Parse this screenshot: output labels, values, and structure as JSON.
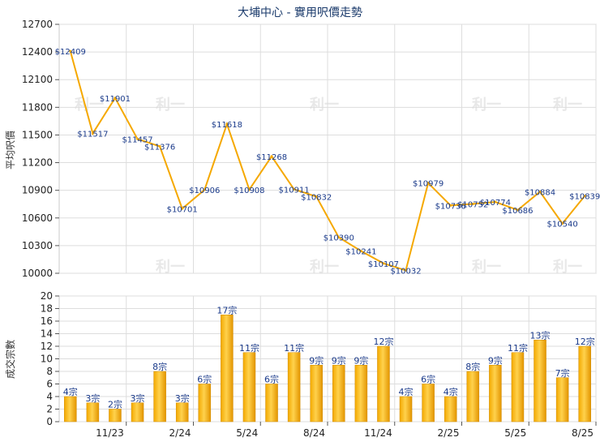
{
  "chart_data": [
    {
      "type": "line",
      "title": "大埔中心 - 實用呎價走勢",
      "ylabel": "平均呎價",
      "ylim": [
        10000,
        12700
      ],
      "yticks": [
        10000,
        10300,
        10600,
        10900,
        11200,
        11500,
        11800,
        12100,
        12400,
        12700
      ],
      "grid": true,
      "color": "#f5a800",
      "label_prefix": "$",
      "values": [
        12409,
        11517,
        11901,
        11457,
        11376,
        10701,
        10906,
        11618,
        10908,
        11268,
        10911,
        10832,
        10390,
        10241,
        10107,
        10032,
        10979,
        10736,
        10752,
        10774,
        10686,
        10884,
        10540,
        10839
      ]
    },
    {
      "type": "bar",
      "ylabel": "成交宗數",
      "ylim": [
        0,
        20
      ],
      "yticks": [
        0,
        2,
        4,
        6,
        8,
        10,
        12,
        14,
        16,
        18,
        20
      ],
      "grid": true,
      "color": "#f5a800",
      "label_suffix": "宗",
      "values": [
        4,
        3,
        2,
        3,
        8,
        3,
        6,
        17,
        11,
        6,
        11,
        9,
        9,
        9,
        12,
        4,
        6,
        4,
        8,
        9,
        11,
        13,
        7,
        12
      ],
      "xtick_labels": [
        "11/23",
        "2/24",
        "5/24",
        "8/24",
        "11/24",
        "2/25",
        "5/25",
        "8/25"
      ]
    }
  ],
  "watermark": "利一"
}
